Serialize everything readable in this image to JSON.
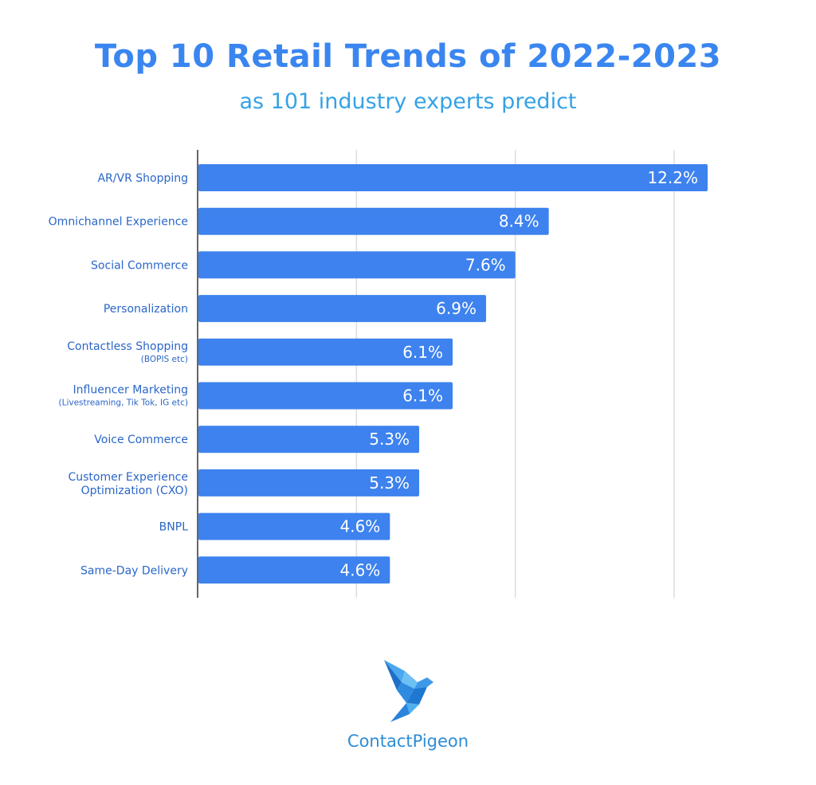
{
  "chart_data": {
    "type": "bar",
    "orientation": "horizontal",
    "title": "Top 10 Retail Trends of 2022-2023",
    "subtitle": "as 101 industry experts predict",
    "categories": [
      {
        "label": "AR/VR Shopping",
        "sub": ""
      },
      {
        "label": "Omnichannel Experience",
        "sub": ""
      },
      {
        "label": "Social Commerce",
        "sub": ""
      },
      {
        "label": "Personalization",
        "sub": ""
      },
      {
        "label": "Contactless Shopping",
        "sub": "(BOPIS etc)"
      },
      {
        "label": "Influencer Marketing",
        "sub": "(Livestreaming, Tik Tok,  IG etc)"
      },
      {
        "label": "Voice Commerce",
        "sub": ""
      },
      {
        "label": "Customer Experience",
        "sub": "Optimization (CXO)"
      },
      {
        "label": "BNPL",
        "sub": ""
      },
      {
        "label": "Same-Day Delivery",
        "sub": ""
      }
    ],
    "values": [
      12.2,
      8.4,
      7.6,
      6.9,
      6.1,
      6.1,
      5.3,
      5.3,
      4.6,
      4.6
    ],
    "value_labels": [
      "12.2%",
      "8.4%",
      "7.6%",
      "6.9%",
      "6.1%",
      "6.1%",
      "5.3%",
      "5.3%",
      "4.6%",
      "4.6%"
    ],
    "xlim": [
      0,
      12.2
    ],
    "vertical_gridlines": [
      3.8,
      7.6,
      11.4
    ],
    "grid": true,
    "legend": "none",
    "colors": {
      "bar": "#3d82ee",
      "bar_text": "#ffffff",
      "category_text": "#2a66c8",
      "title": "#3a86f0",
      "subtitle": "#35a2e6",
      "grid": "#dcdcdc",
      "axis": "#333333"
    }
  },
  "brand": {
    "name": "ContactPigeon",
    "icon": "pigeon-logo-icon"
  }
}
